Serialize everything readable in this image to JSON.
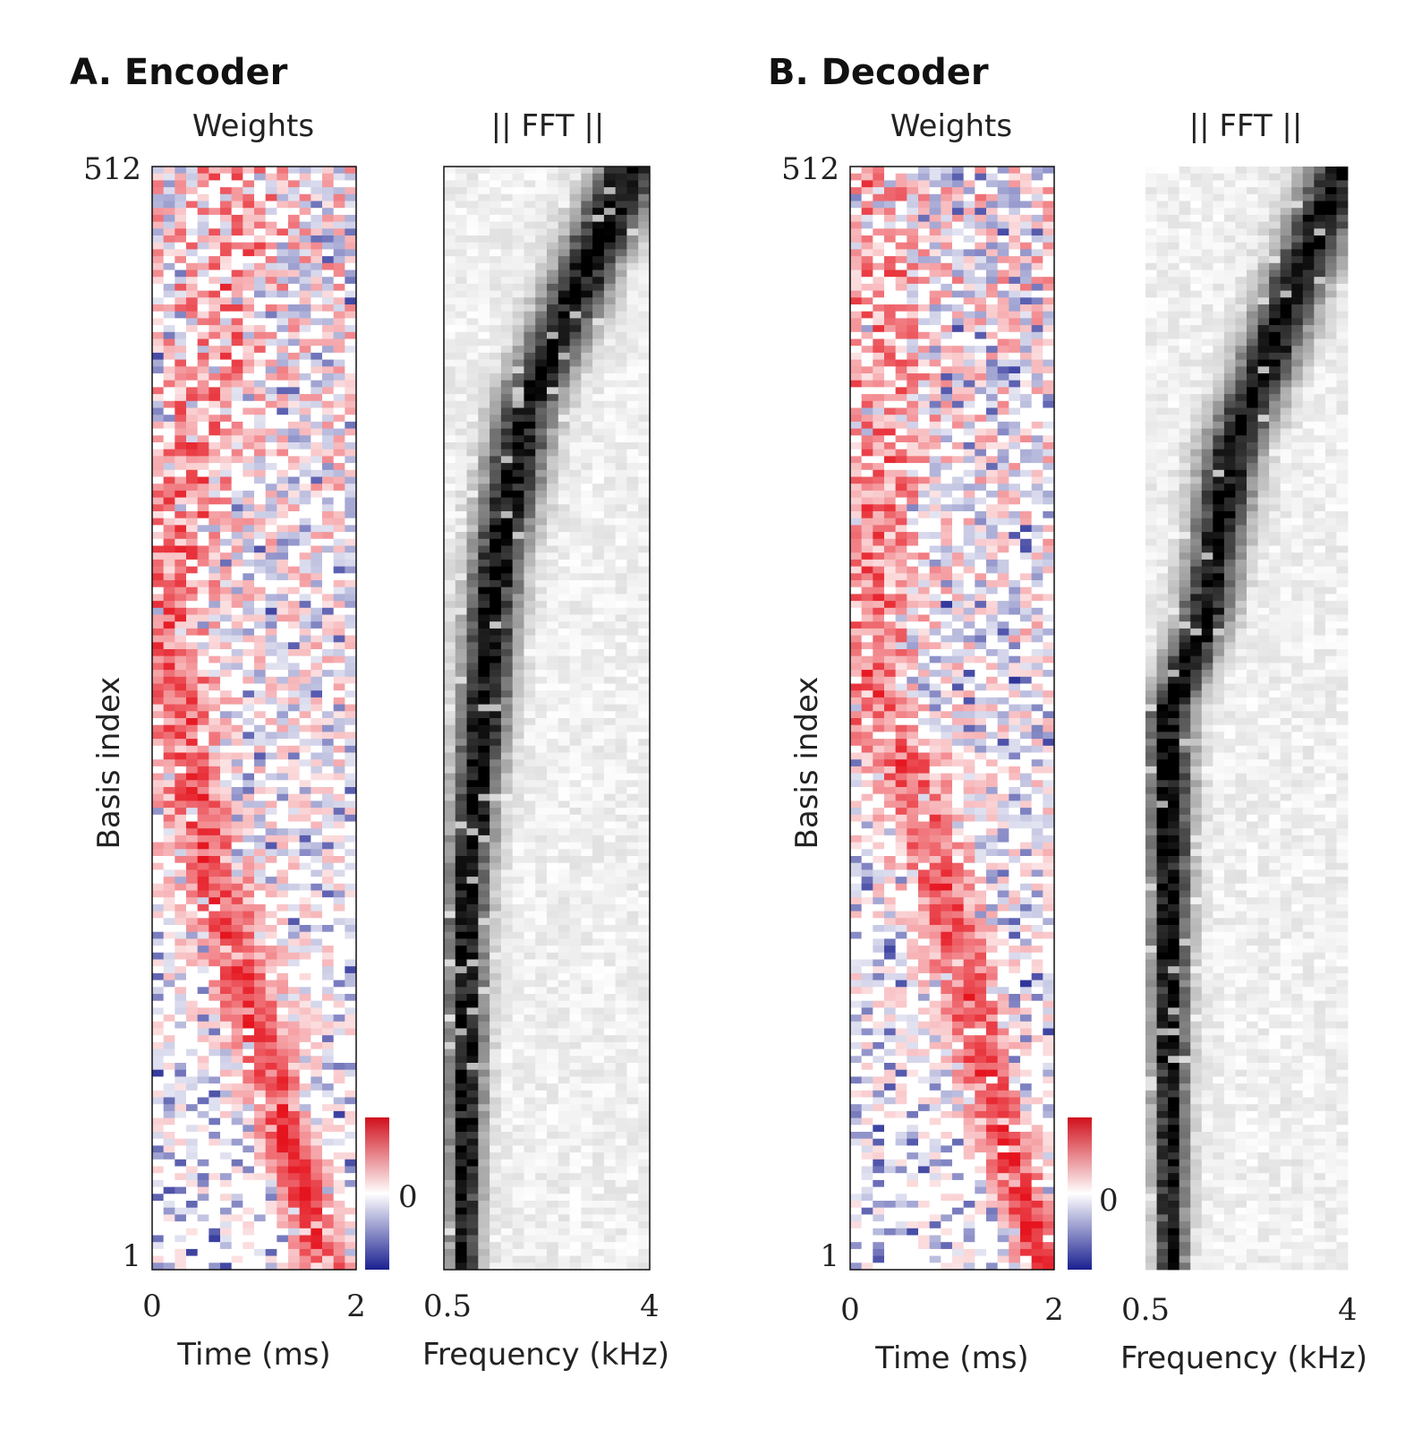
{
  "colors": {
    "positive": "#e5141e",
    "negative": "#1a2090",
    "zero": "#ffffff",
    "magnitude_low": "#ffffff",
    "magnitude_high": "#000000"
  },
  "panels": [
    {
      "id": "A",
      "title": "A. Encoder",
      "weights_title": "Weights",
      "fft_title": "|| FFT ||",
      "ylabel": "Basis index",
      "ytick_top": "512",
      "ytick_bottom": "1",
      "time_xlabel": "Time (ms)",
      "time_ticks": [
        "0",
        "2"
      ],
      "freq_xlabel": "Frequency (kHz)",
      "freq_ticks": [
        "0.5",
        "4"
      ],
      "colorbar_label": "0"
    },
    {
      "id": "B",
      "title": "B. Decoder",
      "weights_title": "Weights",
      "fft_title": "|| FFT ||",
      "ylabel": "Basis index",
      "ytick_top": "512",
      "ytick_bottom": "1",
      "time_xlabel": "Time (ms)",
      "time_ticks": [
        "0",
        "2"
      ],
      "freq_xlabel": "Frequency (kHz)",
      "freq_ticks": [
        "0.5",
        "4"
      ],
      "colorbar_label": "0"
    }
  ],
  "chart_data": [
    {
      "type": "heatmap",
      "panel": "A",
      "role": "weights",
      "x_range_ms": [
        0,
        2
      ],
      "y_range": [
        1,
        512
      ],
      "colormap": "diverging red-white-blue",
      "ridge_time_ms": [
        [
          1,
          1.7
        ],
        [
          100,
          1.1
        ],
        [
          200,
          0.5
        ],
        [
          300,
          0.15
        ],
        [
          512,
          0.9
        ]
      ],
      "pattern": "smooth diagonal ridge at low indices, scattered noise at high indices",
      "seed": 7
    },
    {
      "type": "heatmap",
      "panel": "A",
      "role": "fft",
      "x_range_khz": [
        0.5,
        4
      ],
      "y_range": [
        1,
        512
      ],
      "colormap": "grayscale magnitude",
      "ridge_freq_khz": [
        [
          1,
          0.85
        ],
        [
          180,
          0.9
        ],
        [
          250,
          1.15
        ],
        [
          320,
          1.35
        ],
        [
          400,
          1.9
        ],
        [
          512,
          3.7
        ]
      ],
      "seed": 11
    },
    {
      "type": "heatmap",
      "panel": "B",
      "role": "weights",
      "x_range_ms": [
        0,
        2
      ],
      "y_range": [
        1,
        512
      ],
      "colormap": "diverging red-white-blue",
      "ridge_time_ms": [
        [
          1,
          1.9
        ],
        [
          90,
          1.35
        ],
        [
          170,
          0.95
        ],
        [
          230,
          0.6
        ],
        [
          260,
          0.2
        ],
        [
          512,
          0.3
        ]
      ],
      "pattern": "sharp diagonal ridge at low indices, scattered noise at high indices",
      "seed": 23
    },
    {
      "type": "heatmap",
      "panel": "B",
      "role": "fft",
      "x_range_khz": [
        0.5,
        4
      ],
      "y_range": [
        1,
        512
      ],
      "colormap": "grayscale magnitude",
      "ridge_freq_khz": [
        [
          1,
          0.95
        ],
        [
          260,
          0.9
        ],
        [
          300,
          1.5
        ],
        [
          380,
          2.0
        ],
        [
          512,
          3.9
        ]
      ],
      "seed": 31
    }
  ]
}
